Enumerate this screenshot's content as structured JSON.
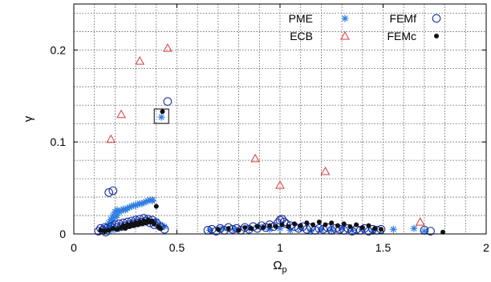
{
  "chart_data": {
    "type": "scatter",
    "xlabel": "Ω",
    "xlabel_sub": "p",
    "ylabel": "γ",
    "xlim": [
      0,
      2
    ],
    "ylim": [
      0,
      0.25
    ],
    "x_ticks": [
      0,
      0.5,
      1,
      1.5,
      2
    ],
    "x_tick_labels": [
      "0",
      "0.5",
      "1",
      "1.5",
      "2"
    ],
    "y_ticks": [
      0,
      0.1,
      0.2
    ],
    "y_tick_labels": [
      "0",
      "0.1",
      "0.2"
    ],
    "x_grid_step": 0.1,
    "y_grid_step": 0.02,
    "grid": true,
    "legend_position": "top-right",
    "annotation": {
      "type": "box",
      "x": 0.425,
      "y": 0.128
    },
    "series": [
      {
        "name": "PME",
        "marker": "asterisk",
        "color": "#2f7fe0",
        "points": [
          [
            0.14,
            0.004
          ],
          [
            0.15,
            0.006
          ],
          [
            0.16,
            0.005
          ],
          [
            0.17,
            0.008
          ],
          [
            0.17,
            0.012
          ],
          [
            0.18,
            0.01
          ],
          [
            0.18,
            0.016
          ],
          [
            0.19,
            0.014
          ],
          [
            0.19,
            0.02
          ],
          [
            0.2,
            0.018
          ],
          [
            0.2,
            0.024
          ],
          [
            0.21,
            0.02
          ],
          [
            0.21,
            0.026
          ],
          [
            0.22,
            0.024
          ],
          [
            0.23,
            0.025
          ],
          [
            0.24,
            0.027
          ],
          [
            0.25,
            0.026
          ],
          [
            0.26,
            0.028
          ],
          [
            0.27,
            0.029
          ],
          [
            0.28,
            0.03
          ],
          [
            0.29,
            0.031
          ],
          [
            0.3,
            0.031
          ],
          [
            0.31,
            0.032
          ],
          [
            0.32,
            0.033
          ],
          [
            0.33,
            0.033
          ],
          [
            0.34,
            0.034
          ],
          [
            0.35,
            0.035
          ],
          [
            0.36,
            0.036
          ],
          [
            0.37,
            0.037
          ],
          [
            0.38,
            0.036
          ],
          [
            0.38,
            0.037
          ],
          [
            0.15,
            0.003
          ],
          [
            0.18,
            0.004
          ],
          [
            0.2,
            0.005
          ],
          [
            0.22,
            0.006
          ],
          [
            0.24,
            0.008
          ],
          [
            0.26,
            0.01
          ],
          [
            0.28,
            0.012
          ],
          [
            0.3,
            0.013
          ],
          [
            0.32,
            0.014
          ],
          [
            0.34,
            0.012
          ],
          [
            0.36,
            0.015
          ],
          [
            0.38,
            0.012
          ],
          [
            0.4,
            0.014
          ],
          [
            0.42,
            0.01
          ],
          [
            0.44,
            0.008
          ],
          [
            0.425,
            0.127
          ],
          [
            0.66,
            0.004
          ],
          [
            0.72,
            0.006
          ],
          [
            0.78,
            0.005
          ],
          [
            0.85,
            0.006
          ],
          [
            0.9,
            0.008
          ],
          [
            0.95,
            0.005
          ],
          [
            1.0,
            0.006
          ],
          [
            1.05,
            0.004
          ],
          [
            1.1,
            0.006
          ],
          [
            1.15,
            0.003
          ],
          [
            1.2,
            0.005
          ],
          [
            1.25,
            0.004
          ],
          [
            1.3,
            0.006
          ],
          [
            1.35,
            0.004
          ],
          [
            1.4,
            0.005
          ],
          [
            1.45,
            0.003
          ],
          [
            1.55,
            0.005
          ],
          [
            1.65,
            0.006
          ],
          [
            1.7,
            0.003
          ]
        ]
      },
      {
        "name": "ECB",
        "marker": "triangle",
        "color": "#d93a3a",
        "points": [
          [
            0.18,
            0.103
          ],
          [
            0.23,
            0.13
          ],
          [
            0.32,
            0.188
          ],
          [
            0.455,
            0.202
          ],
          [
            0.88,
            0.082
          ],
          [
            1.0,
            0.053
          ],
          [
            1.22,
            0.068
          ],
          [
            1.68,
            0.013
          ]
        ]
      },
      {
        "name": "FEMf",
        "marker": "circle",
        "color": "#1a2f9e",
        "points": [
          [
            0.12,
            0.003
          ],
          [
            0.13,
            0.006
          ],
          [
            0.14,
            0.004
          ],
          [
            0.15,
            0.007
          ],
          [
            0.155,
            0.002
          ],
          [
            0.16,
            0.006
          ],
          [
            0.17,
            0.045
          ],
          [
            0.19,
            0.047
          ],
          [
            0.18,
            0.008
          ],
          [
            0.2,
            0.01
          ],
          [
            0.21,
            0.007
          ],
          [
            0.22,
            0.011
          ],
          [
            0.23,
            0.008
          ],
          [
            0.24,
            0.012
          ],
          [
            0.25,
            0.009
          ],
          [
            0.26,
            0.013
          ],
          [
            0.27,
            0.01
          ],
          [
            0.28,
            0.014
          ],
          [
            0.29,
            0.011
          ],
          [
            0.3,
            0.015
          ],
          [
            0.31,
            0.012
          ],
          [
            0.32,
            0.016
          ],
          [
            0.33,
            0.013
          ],
          [
            0.34,
            0.017
          ],
          [
            0.35,
            0.014
          ],
          [
            0.36,
            0.016
          ],
          [
            0.37,
            0.012
          ],
          [
            0.38,
            0.015
          ],
          [
            0.39,
            0.01
          ],
          [
            0.4,
            0.012
          ],
          [
            0.42,
            0.008
          ],
          [
            0.44,
            0.005
          ],
          [
            0.455,
            0.144
          ],
          [
            0.65,
            0.004
          ],
          [
            0.67,
            0.005
          ],
          [
            0.69,
            0.003
          ],
          [
            0.71,
            0.006
          ],
          [
            0.73,
            0.004
          ],
          [
            0.75,
            0.007
          ],
          [
            0.77,
            0.005
          ],
          [
            0.79,
            0.006
          ],
          [
            0.81,
            0.004
          ],
          [
            0.83,
            0.007
          ],
          [
            0.85,
            0.005
          ],
          [
            0.87,
            0.008
          ],
          [
            0.89,
            0.006
          ],
          [
            0.91,
            0.009
          ],
          [
            0.93,
            0.007
          ],
          [
            0.95,
            0.01
          ],
          [
            0.97,
            0.008
          ],
          [
            0.99,
            0.012
          ],
          [
            1.0,
            0.015
          ],
          [
            1.01,
            0.016
          ],
          [
            1.02,
            0.013
          ],
          [
            1.03,
            0.011
          ],
          [
            1.05,
            0.009
          ],
          [
            1.07,
            0.008
          ],
          [
            1.09,
            0.006
          ],
          [
            1.11,
            0.008
          ],
          [
            1.13,
            0.005
          ],
          [
            1.15,
            0.007
          ],
          [
            1.17,
            0.004
          ],
          [
            1.19,
            0.006
          ],
          [
            1.21,
            0.005
          ],
          [
            1.23,
            0.007
          ],
          [
            1.25,
            0.004
          ],
          [
            1.27,
            0.006
          ],
          [
            1.29,
            0.005
          ],
          [
            1.31,
            0.004
          ],
          [
            1.33,
            0.006
          ],
          [
            1.35,
            0.003
          ],
          [
            1.37,
            0.005
          ],
          [
            1.39,
            0.004
          ],
          [
            1.41,
            0.006
          ],
          [
            1.43,
            0.003
          ],
          [
            1.45,
            0.005
          ],
          [
            1.47,
            0.004
          ],
          [
            1.49,
            0.005
          ],
          [
            1.7,
            0.004
          ],
          [
            1.73,
            0.003
          ]
        ]
      },
      {
        "name": "FEMc",
        "marker": "dot",
        "color": "#111111",
        "points": [
          [
            0.13,
            0.004
          ],
          [
            0.15,
            0.003
          ],
          [
            0.17,
            0.004
          ],
          [
            0.19,
            0.006
          ],
          [
            0.21,
            0.005
          ],
          [
            0.23,
            0.007
          ],
          [
            0.24,
            0.009
          ],
          [
            0.25,
            0.006
          ],
          [
            0.26,
            0.01
          ],
          [
            0.27,
            0.008
          ],
          [
            0.28,
            0.011
          ],
          [
            0.29,
            0.009
          ],
          [
            0.3,
            0.012
          ],
          [
            0.31,
            0.01
          ],
          [
            0.32,
            0.013
          ],
          [
            0.33,
            0.011
          ],
          [
            0.34,
            0.014
          ],
          [
            0.35,
            0.012
          ],
          [
            0.36,
            0.015
          ],
          [
            0.37,
            0.013
          ],
          [
            0.38,
            0.014
          ],
          [
            0.39,
            0.011
          ],
          [
            0.4,
            0.03
          ],
          [
            0.41,
            0.008
          ],
          [
            0.42,
            0.006
          ],
          [
            0.43,
            0.133
          ],
          [
            0.7,
            0.005
          ],
          [
            0.75,
            0.006
          ],
          [
            0.8,
            0.004
          ],
          [
            0.83,
            0.007
          ],
          [
            0.86,
            0.006
          ],
          [
            0.89,
            0.008
          ],
          [
            0.92,
            0.007
          ],
          [
            0.95,
            0.009
          ],
          [
            0.98,
            0.008
          ],
          [
            1.01,
            0.01
          ],
          [
            1.04,
            0.008
          ],
          [
            1.07,
            0.011
          ],
          [
            1.1,
            0.009
          ],
          [
            1.13,
            0.012
          ],
          [
            1.16,
            0.01
          ],
          [
            1.19,
            0.013
          ],
          [
            1.22,
            0.01
          ],
          [
            1.25,
            0.012
          ],
          [
            1.28,
            0.009
          ],
          [
            1.31,
            0.011
          ],
          [
            1.34,
            0.008
          ],
          [
            1.37,
            0.01
          ],
          [
            1.4,
            0.007
          ],
          [
            1.43,
            0.009
          ],
          [
            1.46,
            0.006
          ],
          [
            1.49,
            0.005
          ],
          [
            1.79,
            0.002
          ]
        ]
      }
    ]
  }
}
